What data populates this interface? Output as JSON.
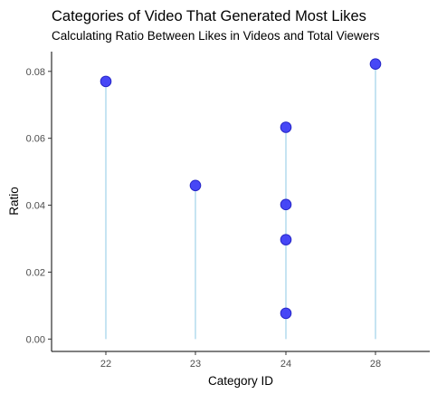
{
  "chart_data": {
    "type": "scatter",
    "title": "Categories of Video That Generated Most Likes",
    "subtitle": "Calculating Ratio Between Likes in Videos and Total Viewers",
    "xlabel": "Category ID",
    "ylabel": "Ratio",
    "categories": [
      "22",
      "23",
      "24",
      "28"
    ],
    "points": [
      {
        "x": "22",
        "y": 0.077
      },
      {
        "x": "23",
        "y": 0.0459
      },
      {
        "x": "24",
        "y": 0.0633
      },
      {
        "x": "24",
        "y": 0.0402
      },
      {
        "x": "24",
        "y": 0.0297
      },
      {
        "x": "24",
        "y": 0.0077
      },
      {
        "x": "28",
        "y": 0.0822
      }
    ],
    "yticks": [
      0.0,
      0.02,
      0.04,
      0.06,
      0.08
    ],
    "ytick_labels": [
      "0.00",
      "0.02",
      "0.04",
      "0.06",
      "0.08"
    ],
    "ylim": [
      -0.0037,
      0.0859
    ],
    "grid": false,
    "legend": "none",
    "colors": {
      "point": "#3d3df5",
      "stem": "#8ecae6"
    }
  }
}
